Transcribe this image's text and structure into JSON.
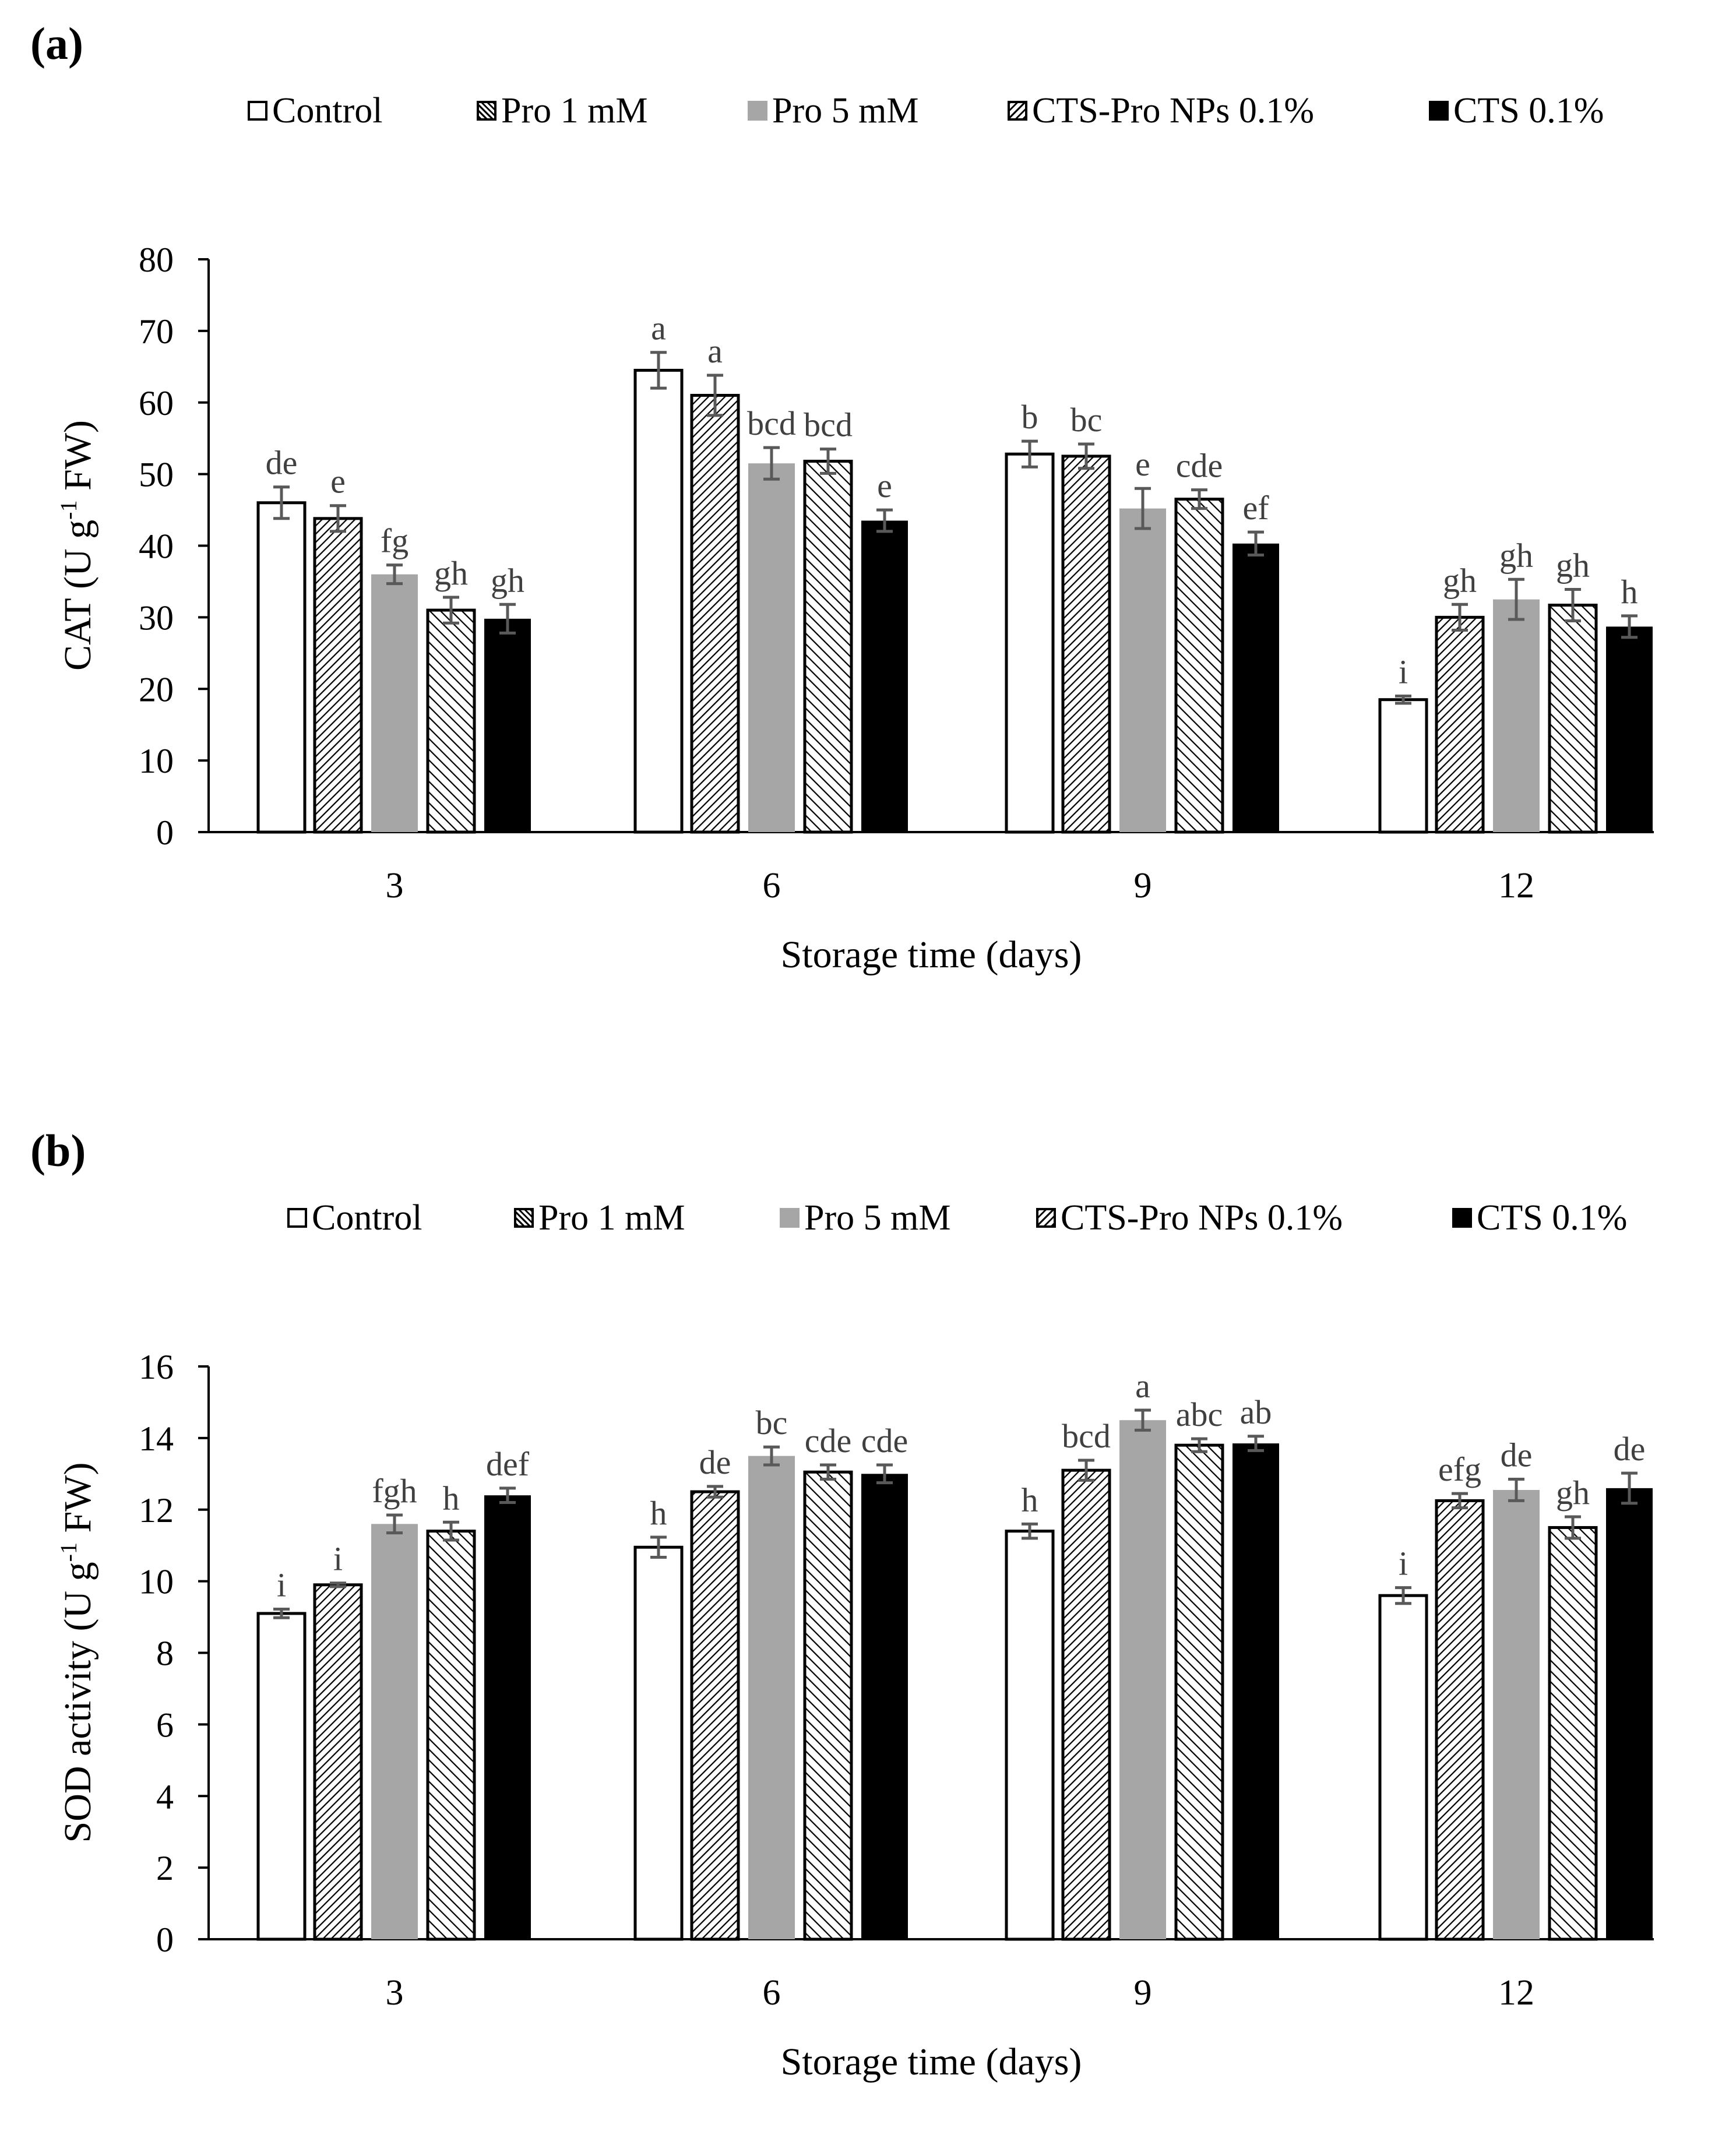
{
  "legend_swatches": [
    {
      "key": "control",
      "fill": "#ffffff",
      "pattern": "none"
    },
    {
      "key": "pro1",
      "fill": "#ffffff",
      "pattern": "dense-diagonal-down"
    },
    {
      "key": "pro5",
      "fill": "#a6a6a6",
      "pattern": "none"
    },
    {
      "key": "ctspro",
      "fill": "#ffffff",
      "pattern": "wide-diagonal-up"
    },
    {
      "key": "cts",
      "fill": "#000000",
      "pattern": "none"
    }
  ],
  "colors": {
    "bar_stroke": "#000000",
    "error_bar": "#595959",
    "grey_bar": "#a6a6a6",
    "black_bar": "#000000"
  },
  "chart_data": [
    {
      "type": "bar",
      "panel_label": "(a)",
      "title": "",
      "xlabel": "Storage time (days)",
      "ylabel_main": "CAT (U g",
      "ylabel_sup": "-1",
      "ylabel_tail": " FW)",
      "ylim": [
        0,
        80
      ],
      "ytick_step": 10,
      "yticks": [
        "0",
        "10",
        "20",
        "30",
        "40",
        "50",
        "60",
        "70",
        "80"
      ],
      "categories": [
        "3",
        "6",
        "9",
        "12"
      ],
      "grid": false,
      "legend_position": "top",
      "series": [
        {
          "name": "Control",
          "values": [
            46.0,
            64.5,
            52.8,
            18.5
          ],
          "errors": [
            2.2,
            2.5,
            1.8,
            0.5
          ],
          "letters": [
            "de",
            "a",
            "b",
            "i"
          ]
        },
        {
          "name": "Pro 1 mM",
          "values": [
            43.8,
            61.0,
            52.5,
            30.0
          ],
          "errors": [
            1.8,
            2.8,
            1.7,
            1.8
          ],
          "letters": [
            "e",
            "a",
            "bc",
            "gh"
          ]
        },
        {
          "name": "Pro 5 mM",
          "values": [
            36.0,
            51.5,
            45.2,
            32.5
          ],
          "errors": [
            1.3,
            2.2,
            2.8,
            2.8
          ],
          "letters": [
            "fg",
            "bcd",
            "e",
            "gh"
          ]
        },
        {
          "name": "CTS-Pro NPs 0.1%",
          "values": [
            31.0,
            51.8,
            46.5,
            31.7
          ],
          "errors": [
            1.8,
            1.7,
            1.3,
            2.2
          ],
          "letters": [
            "gh",
            "bcd",
            "cde",
            "gh"
          ]
        },
        {
          "name": "CTS 0.1%",
          "values": [
            29.8,
            43.5,
            40.3,
            28.7
          ],
          "errors": [
            2.0,
            1.5,
            1.6,
            1.5
          ],
          "letters": [
            "gh",
            "e",
            "ef",
            "h"
          ]
        }
      ]
    },
    {
      "type": "bar",
      "panel_label": "(b)",
      "title": "",
      "xlabel": "Storage time (days)",
      "ylabel_main": "SOD activity (U g",
      "ylabel_sup": "-1",
      "ylabel_tail": " FW)",
      "ylim": [
        0,
        16
      ],
      "ytick_step": 2,
      "yticks": [
        "0",
        "2",
        "4",
        "6",
        "8",
        "10",
        "12",
        "14",
        "16"
      ],
      "categories": [
        "3",
        "6",
        "9",
        "12"
      ],
      "grid": false,
      "legend_position": "top",
      "series": [
        {
          "name": "Control",
          "values": [
            9.1,
            10.95,
            11.4,
            9.6
          ],
          "errors": [
            0.12,
            0.28,
            0.2,
            0.22
          ],
          "letters": [
            "i",
            "h",
            "h",
            "i"
          ]
        },
        {
          "name": "Pro 1 mM",
          "values": [
            9.9,
            12.5,
            13.1,
            12.25
          ],
          "errors": [
            0.05,
            0.15,
            0.28,
            0.2
          ],
          "letters": [
            "i",
            "de",
            "bcd",
            "efg"
          ]
        },
        {
          "name": "Pro 5 mM",
          "values": [
            11.6,
            13.5,
            14.5,
            12.55
          ],
          "errors": [
            0.25,
            0.25,
            0.28,
            0.3
          ],
          "letters": [
            "fgh",
            "bc",
            "a",
            "de"
          ]
        },
        {
          "name": "CTS-Pro NPs 0.1%",
          "values": [
            11.4,
            13.05,
            13.8,
            11.5
          ],
          "errors": [
            0.25,
            0.2,
            0.18,
            0.3
          ],
          "letters": [
            "h",
            "cde",
            "abc",
            "gh"
          ]
        },
        {
          "name": "CTS 0.1%",
          "values": [
            12.4,
            13.0,
            13.85,
            12.6
          ],
          "errors": [
            0.2,
            0.25,
            0.2,
            0.42
          ],
          "letters": [
            "def",
            "cde",
            "ab",
            "de"
          ]
        }
      ]
    }
  ]
}
